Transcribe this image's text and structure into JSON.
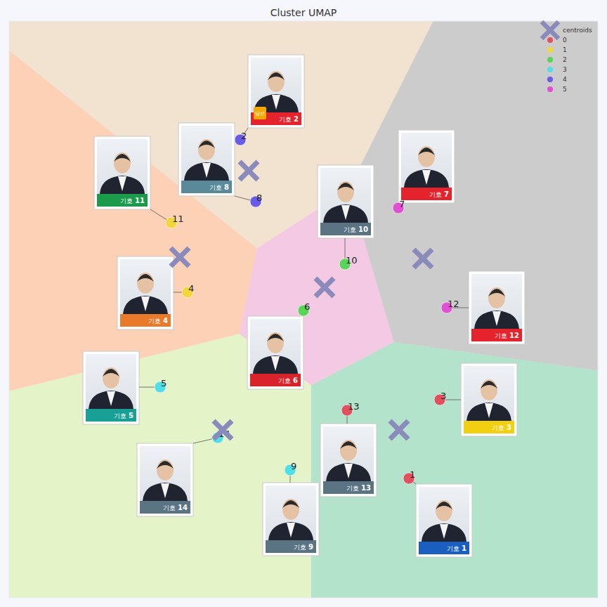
{
  "chart_data": {
    "type": "scatter",
    "title": "Cluster UMAP",
    "xlim": [
      0,
      838
    ],
    "ylim": [
      0,
      821
    ],
    "tick_labels": false,
    "grid": false,
    "legend": "upper right",
    "series": [
      {
        "name": "0",
        "color": "#e0505e",
        "x": [
          569,
          613,
          481
        ],
        "y": [
          170,
          282,
          267
        ],
        "labels": [
          1,
          3,
          13
        ]
      },
      {
        "name": "1",
        "color": "#f2d63a",
        "x": [
          231,
          254
        ],
        "y": [
          534,
          435
        ],
        "labels": [
          11,
          4
        ]
      },
      {
        "name": "2",
        "color": "#58d458",
        "x": [
          478,
          419
        ],
        "y": [
          475,
          409
        ],
        "labels": [
          10,
          6
        ]
      },
      {
        "name": "3",
        "color": "#4ee0e6",
        "x": [
          215,
          297,
          400
        ],
        "y": [
          300,
          228,
          182
        ],
        "labels": [
          5,
          14,
          9
        ]
      },
      {
        "name": "4",
        "color": "#6a5ae8",
        "x": [
          329,
          351
        ],
        "y": [
          652,
          564
        ],
        "labels": [
          2,
          8
        ]
      },
      {
        "name": "5",
        "color": "#e050d2",
        "x": [
          554,
          623
        ],
        "y": [
          555,
          413
        ],
        "labels": [
          7,
          12
        ]
      }
    ],
    "centroids": {
      "name": "centroids",
      "color": "#8a8abb",
      "marker": "x",
      "x": [
        555,
        243,
        449,
        304,
        341,
        589
      ],
      "y": [
        239,
        485,
        442,
        239,
        608,
        483
      ],
      "colors": [
        "#b4e3cc",
        "#fdd1b6",
        "#f4c9e3",
        "#e5f3c9",
        "#f1e3cf",
        "#cccccc"
      ]
    },
    "card_prefix": "기호",
    "badge": {
      "text": "당선",
      "label": 2
    }
  }
}
